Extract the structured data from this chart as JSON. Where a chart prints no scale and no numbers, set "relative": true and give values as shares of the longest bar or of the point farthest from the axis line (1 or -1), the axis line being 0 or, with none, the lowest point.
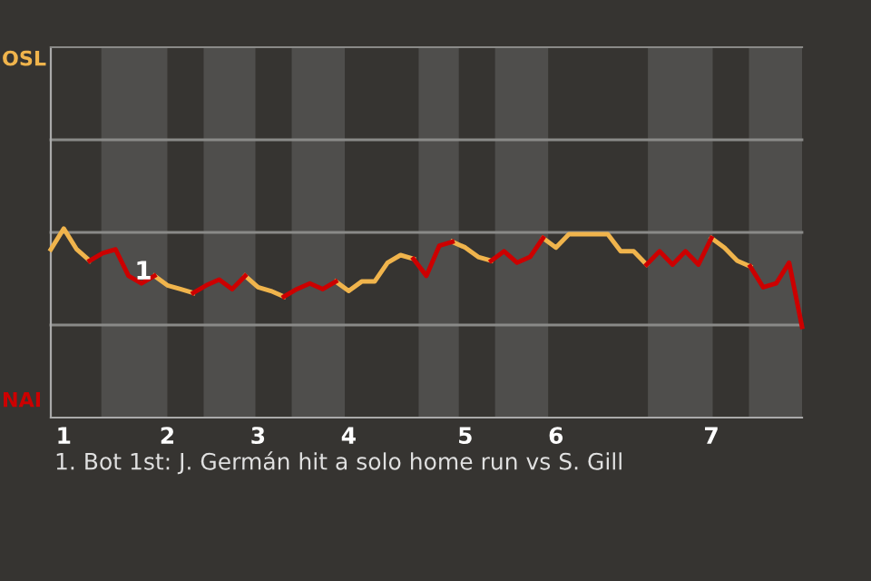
{
  "chart_data": {
    "type": "line",
    "relative": true,
    "tick_labels": "x",
    "categories": [
      null,
      "1",
      null,
      null,
      null,
      null,
      null,
      null,
      null,
      "2",
      null,
      null,
      null,
      null,
      null,
      null,
      "3",
      null,
      null,
      null,
      null,
      null,
      null,
      "4",
      null,
      null,
      null,
      null,
      null,
      null,
      null,
      null,
      "5",
      null,
      null,
      null,
      null,
      null,
      null,
      "6",
      null,
      null,
      null,
      null,
      null,
      null,
      null,
      null,
      null,
      null,
      null,
      "7",
      null,
      null,
      null,
      null,
      null,
      null,
      null
    ],
    "legend": false,
    "marker": "none",
    "line_style": "solid",
    "ref_lines": [
      {
        "axis": "y",
        "value": 0.49,
        "color": "#8a8a88"
      },
      {
        "axis": "y",
        "value": 0.98,
        "color": "#8a8a88"
      },
      {
        "axis": "y",
        "value": 1.47,
        "color": "#8a8a88"
      }
    ],
    "annotations": [
      "OSL",
      "NAI",
      "1",
      "1. Bot 1st: J. Germán hit a solo home run vs S. Gill"
    ],
    "series": [
      {
        "color": "#f0b44c",
        "values": [
          0.89,
          1,
          0.89,
          0.83,
          null,
          null,
          null,
          null,
          0.75,
          0.7,
          0.68,
          0.66,
          null,
          null,
          null,
          0.75,
          0.69,
          0.67,
          0.64,
          null,
          null,
          null,
          0.72,
          0.67,
          0.72,
          0.72,
          0.82,
          0.86,
          0.84,
          null,
          null,
          0.93,
          0.9,
          0.85,
          0.83,
          null,
          null,
          null,
          0.95,
          0.9,
          0.97,
          0.97,
          0.97,
          0.97,
          0.88,
          0.88,
          0.81,
          null,
          null,
          null,
          null,
          0.95,
          0.9,
          0.83,
          0.8,
          null,
          null,
          null,
          null
        ]
      },
      {
        "color": "#cc0000",
        "values": [
          null,
          null,
          null,
          0.83,
          0.87,
          0.89,
          0.75,
          0.71,
          0.75,
          null,
          null,
          0.66,
          0.7,
          0.73,
          0.68,
          0.75,
          null,
          null,
          0.64,
          0.68,
          0.71,
          0.68,
          0.72,
          null,
          null,
          null,
          null,
          null,
          0.84,
          0.75,
          0.91,
          0.93,
          null,
          null,
          0.83,
          0.88,
          0.82,
          0.85,
          0.95,
          null,
          null,
          null,
          null,
          null,
          null,
          null,
          0.81,
          0.88,
          0.81,
          0.88,
          0.81,
          0.95,
          null,
          null,
          0.8,
          0.69,
          0.71,
          0.82,
          0.48
        ]
      }
    ]
  }
}
